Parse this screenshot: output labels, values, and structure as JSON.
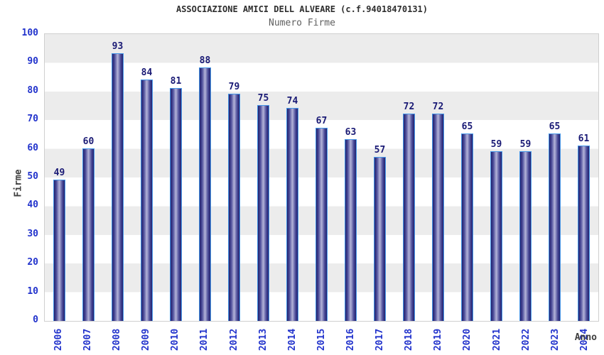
{
  "chart_data": {
    "type": "bar",
    "title": "ASSOCIAZIONE AMICI DELL ALVEARE (c.f.94018470131)",
    "subtitle": "Numero Firme",
    "xlabel": "Anno",
    "ylabel": "Firme",
    "categories": [
      "2006",
      "2007",
      "2008",
      "2009",
      "2010",
      "2011",
      "2012",
      "2013",
      "2014",
      "2015",
      "2016",
      "2017",
      "2018",
      "2019",
      "2020",
      "2021",
      "2022",
      "2023",
      "2024"
    ],
    "values": [
      49,
      60,
      93,
      84,
      81,
      88,
      79,
      75,
      74,
      67,
      63,
      57,
      72,
      72,
      65,
      59,
      59,
      65,
      61
    ],
    "ylim": [
      0,
      100
    ],
    "yticks": [
      0,
      10,
      20,
      30,
      40,
      50,
      60,
      70,
      80,
      90,
      100
    ],
    "legend": "none",
    "grid": "alternating horizontal bands",
    "colors": {
      "bar_edge_dark": "#21216e",
      "bar_mid": "#4c4c99",
      "bar_center_light": "#b4b4d9",
      "bar_border": "#4596e8",
      "value_label": "#1a1a75",
      "axis_tick_label": "#2233cc",
      "axis_title": "#3f3f3f",
      "band_gray": "#ececec",
      "plot_border": "#cfcfcf",
      "title_color": "#2e2e2e",
      "subtitle_color": "#5f5f5f"
    }
  }
}
